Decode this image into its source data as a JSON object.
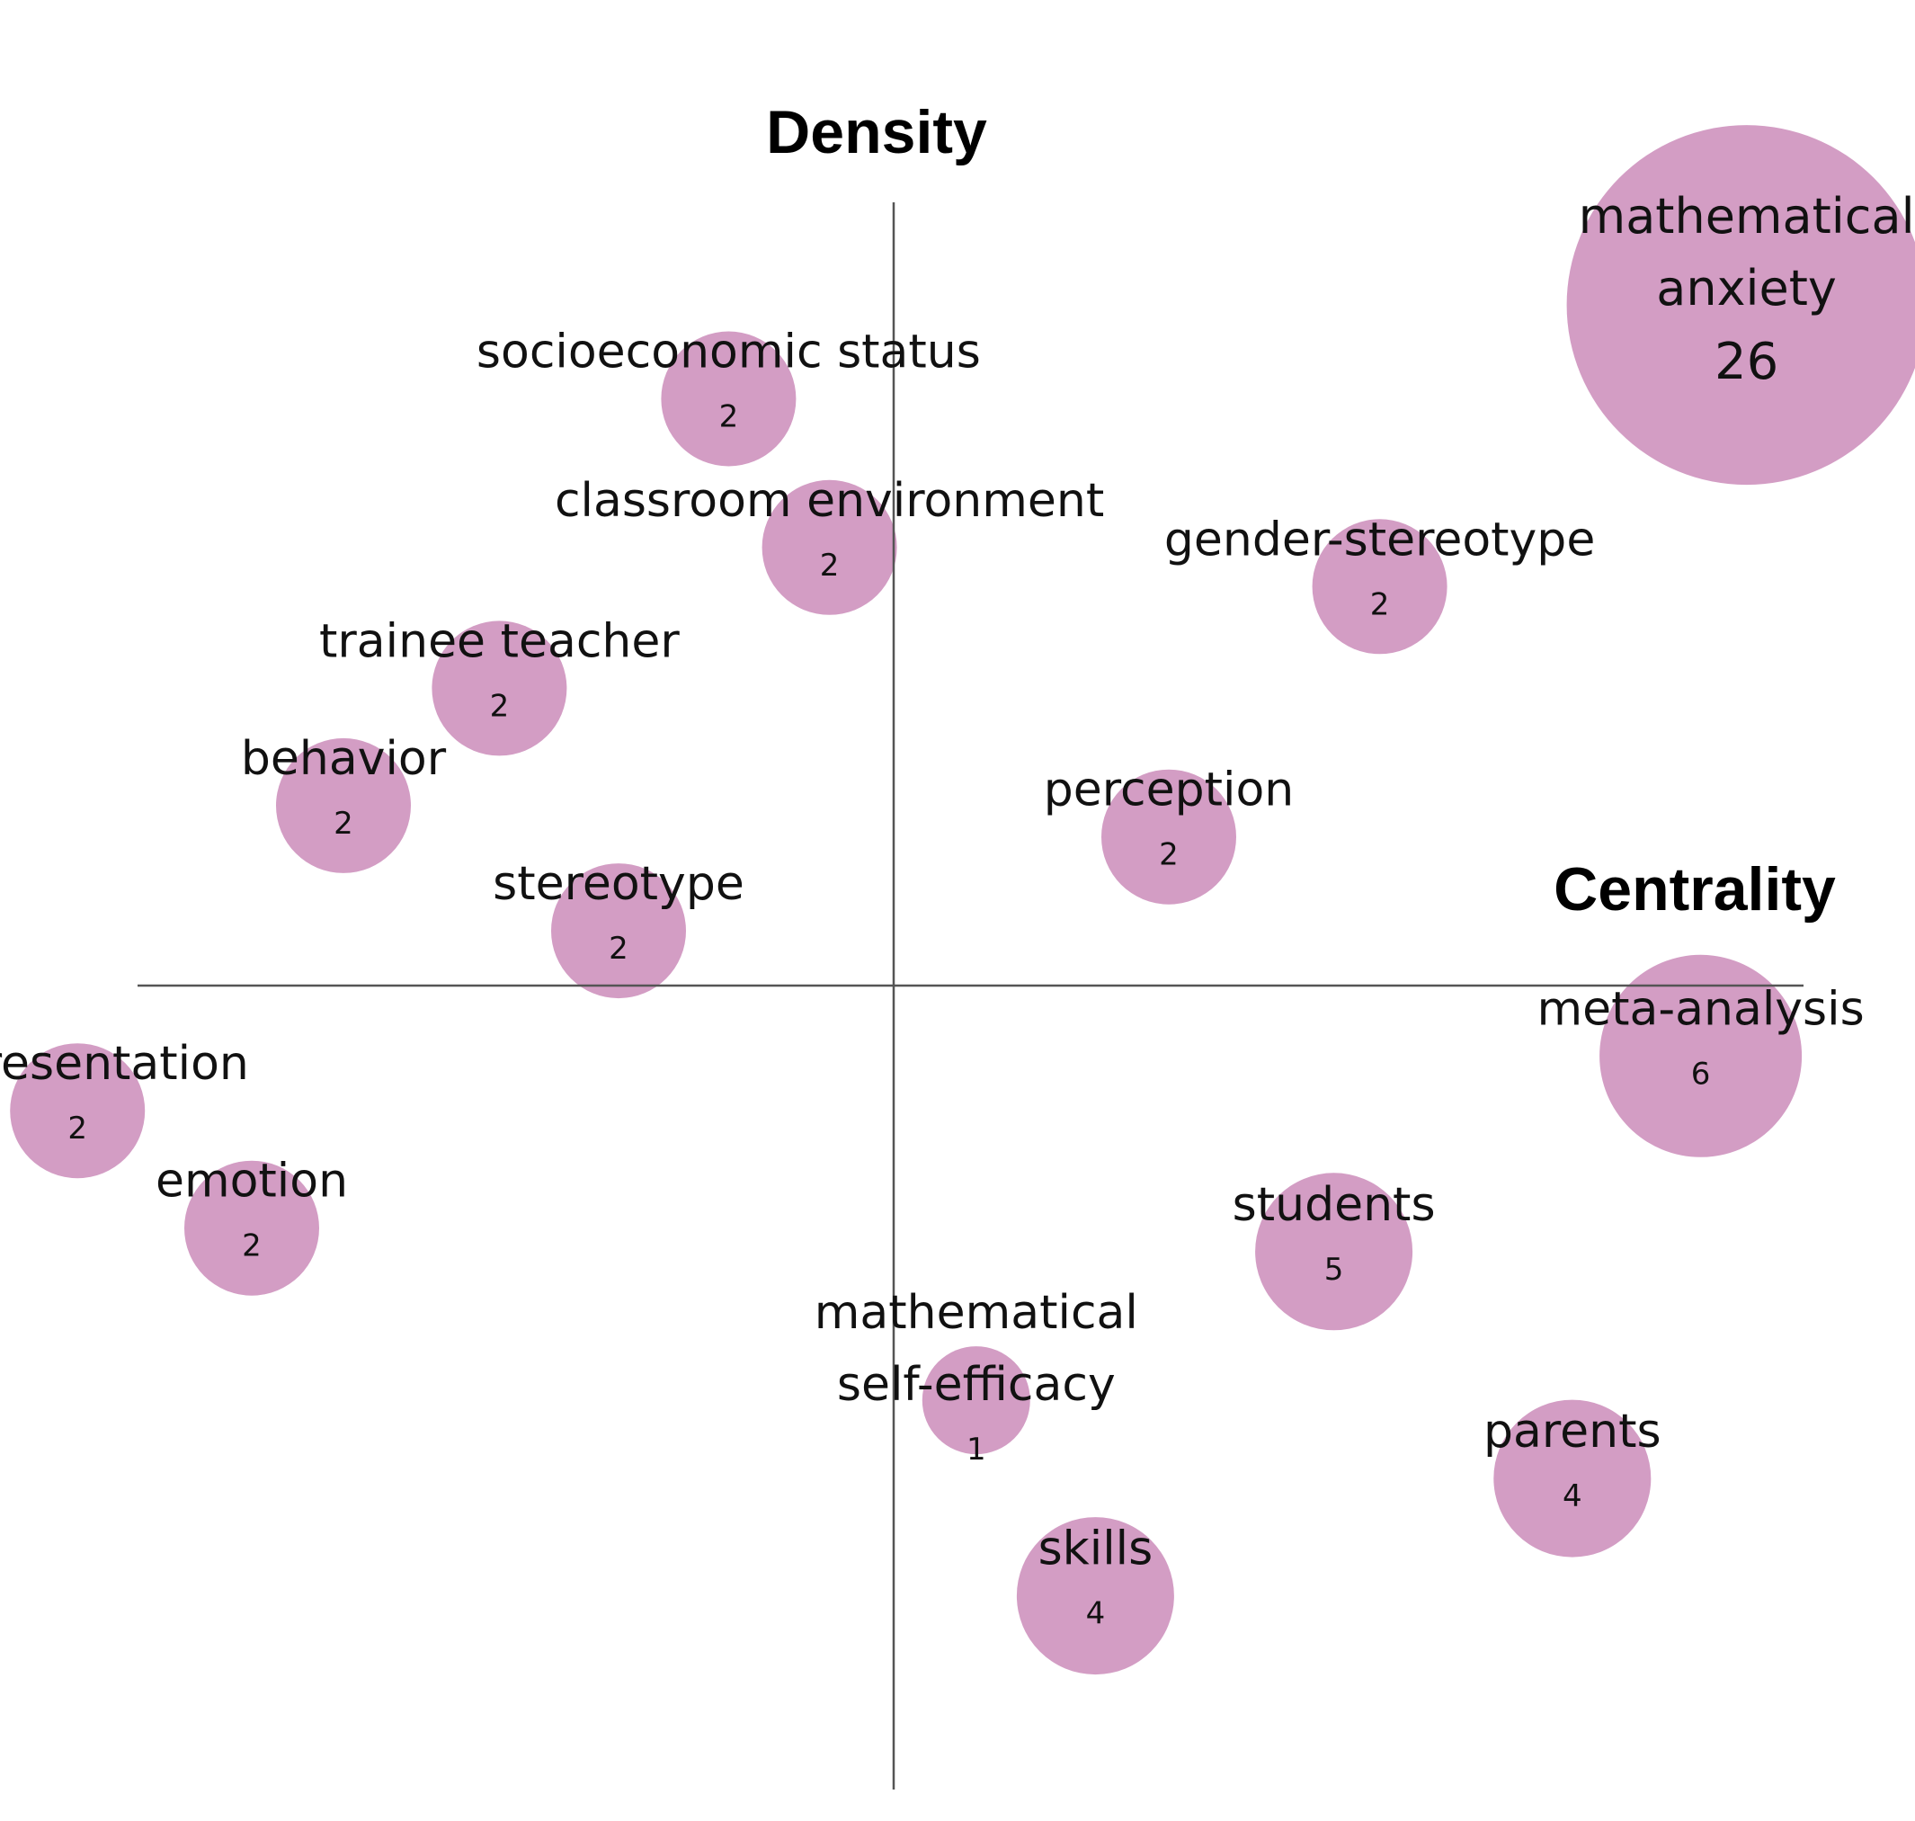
{
  "chart_data": {
    "type": "scatter",
    "title": "",
    "xlabel": "Centrality",
    "ylabel": "Density",
    "bubble_color": "#d39dc4",
    "series": [
      {
        "points": [
          {
            "label": [
              "mathematical",
              "anxiety"
            ],
            "value": "26",
            "x": 0.93,
            "y": 0.87,
            "r": 1.0
          },
          {
            "label": [
              "socioeconomic status"
            ],
            "value": "2",
            "x": -0.18,
            "y": 0.75,
            "r": 0.5
          },
          {
            "label": [
              "classroom environment"
            ],
            "value": "2",
            "x": -0.07,
            "y": 0.56,
            "r": 0.5
          },
          {
            "label": [
              "gender-stereotype"
            ],
            "value": "2",
            "x": 0.53,
            "y": 0.51,
            "r": 0.5
          },
          {
            "label": [
              "trainee teacher"
            ],
            "value": "2",
            "x": -0.43,
            "y": 0.38,
            "r": 0.5
          },
          {
            "label": [
              "behavior"
            ],
            "value": "2",
            "x": -0.6,
            "y": 0.23,
            "r": 0.5
          },
          {
            "label": [
              "perception"
            ],
            "value": "2",
            "x": 0.3,
            "y": 0.19,
            "r": 0.5
          },
          {
            "label": [
              "stereotype"
            ],
            "value": "2",
            "x": -0.3,
            "y": 0.07,
            "r": 0.5
          },
          {
            "label": [
              "meta-analysis"
            ],
            "value": "6",
            "x": 0.88,
            "y": -0.09,
            "r": 0.65
          },
          {
            "label": [
              "representation"
            ],
            "value": "2",
            "x": -0.89,
            "y": -0.16,
            "r": 0.5
          },
          {
            "label": [
              "emotion"
            ],
            "value": "2",
            "x": -0.7,
            "y": -0.31,
            "r": 0.5
          },
          {
            "label": [
              "students"
            ],
            "value": "5",
            "x": 0.48,
            "y": -0.34,
            "r": 0.55
          },
          {
            "label": [
              "mathematical",
              "self-efficacy"
            ],
            "value": "1",
            "x": 0.09,
            "y": -0.53,
            "r": 0.44
          },
          {
            "label": [
              "parents"
            ],
            "value": "4",
            "x": 0.74,
            "y": -0.63,
            "r": 0.55
          },
          {
            "label": [
              "skills"
            ],
            "value": "4",
            "x": 0.22,
            "y": -0.78,
            "r": 0.55
          }
        ]
      }
    ],
    "xlim": [
      -1,
      1
    ],
    "ylim": [
      -1,
      1
    ],
    "grid": false,
    "legend": "none"
  }
}
